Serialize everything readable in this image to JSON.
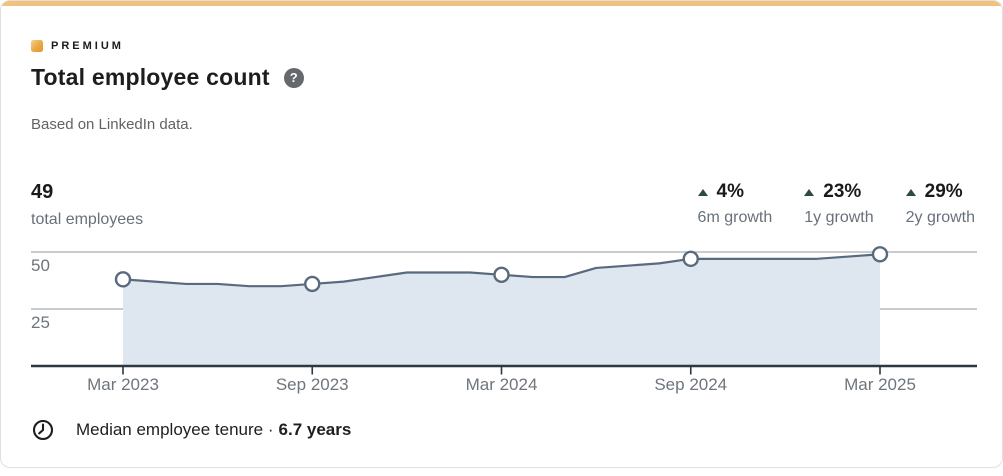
{
  "card": {
    "premium_label": "PREMIUM",
    "title": "Total employee count",
    "subtitle": "Based on LinkedIn data."
  },
  "stats": {
    "count_value": "49",
    "count_label": "total employees",
    "growth": [
      {
        "value": "4%",
        "label": "6m growth",
        "direction": "up"
      },
      {
        "value": "23%",
        "label": "1y growth",
        "direction": "up"
      },
      {
        "value": "29%",
        "label": "2y growth",
        "direction": "up"
      }
    ]
  },
  "chart_data": {
    "type": "area",
    "title": "Total employee count over time",
    "x": [
      "Mar 2023",
      "Apr 2023",
      "May 2023",
      "Jun 2023",
      "Jul 2023",
      "Aug 2023",
      "Sep 2023",
      "Oct 2023",
      "Nov 2023",
      "Dec 2023",
      "Jan 2024",
      "Feb 2024",
      "Mar 2024",
      "Apr 2024",
      "May 2024",
      "Jun 2024",
      "Jul 2024",
      "Aug 2024",
      "Sep 2024",
      "Oct 2024",
      "Nov 2024",
      "Dec 2024",
      "Jan 2025",
      "Feb 2025",
      "Mar 2025"
    ],
    "values": [
      38,
      37,
      36,
      36,
      35,
      35,
      36,
      37,
      39,
      41,
      41,
      41,
      40,
      39,
      39,
      43,
      44,
      45,
      47,
      47,
      47,
      47,
      47,
      48,
      49
    ],
    "x_tick_labels": [
      "Mar 2023",
      "Sep 2023",
      "Mar 2024",
      "Sep 2024",
      "Mar 2025"
    ],
    "marker_indices": [
      0,
      6,
      12,
      18,
      24
    ],
    "y_ticks": [
      25,
      50
    ],
    "ylim": [
      0,
      55
    ],
    "grid": "horizontal",
    "legend": "none",
    "colors": {
      "line": "#5a6a7e",
      "fill": "#dee7f0",
      "axis": "#2d383f",
      "gridline": "#a9aeb2",
      "tick_label": "#6e757c",
      "marker_fill": "#ffffff"
    }
  },
  "footer": {
    "tenure_label": "Median employee tenure ·",
    "tenure_value": "6.7 years"
  },
  "icons": {
    "premium_badge": "gold-square",
    "help": "question-mark-circle",
    "help_glyph": "?",
    "growth_direction": "triangle-up",
    "tenure": "clock"
  },
  "accent_colors": {
    "premium_gold": "#f2c17c",
    "growth_green": "#2c4a3e"
  }
}
